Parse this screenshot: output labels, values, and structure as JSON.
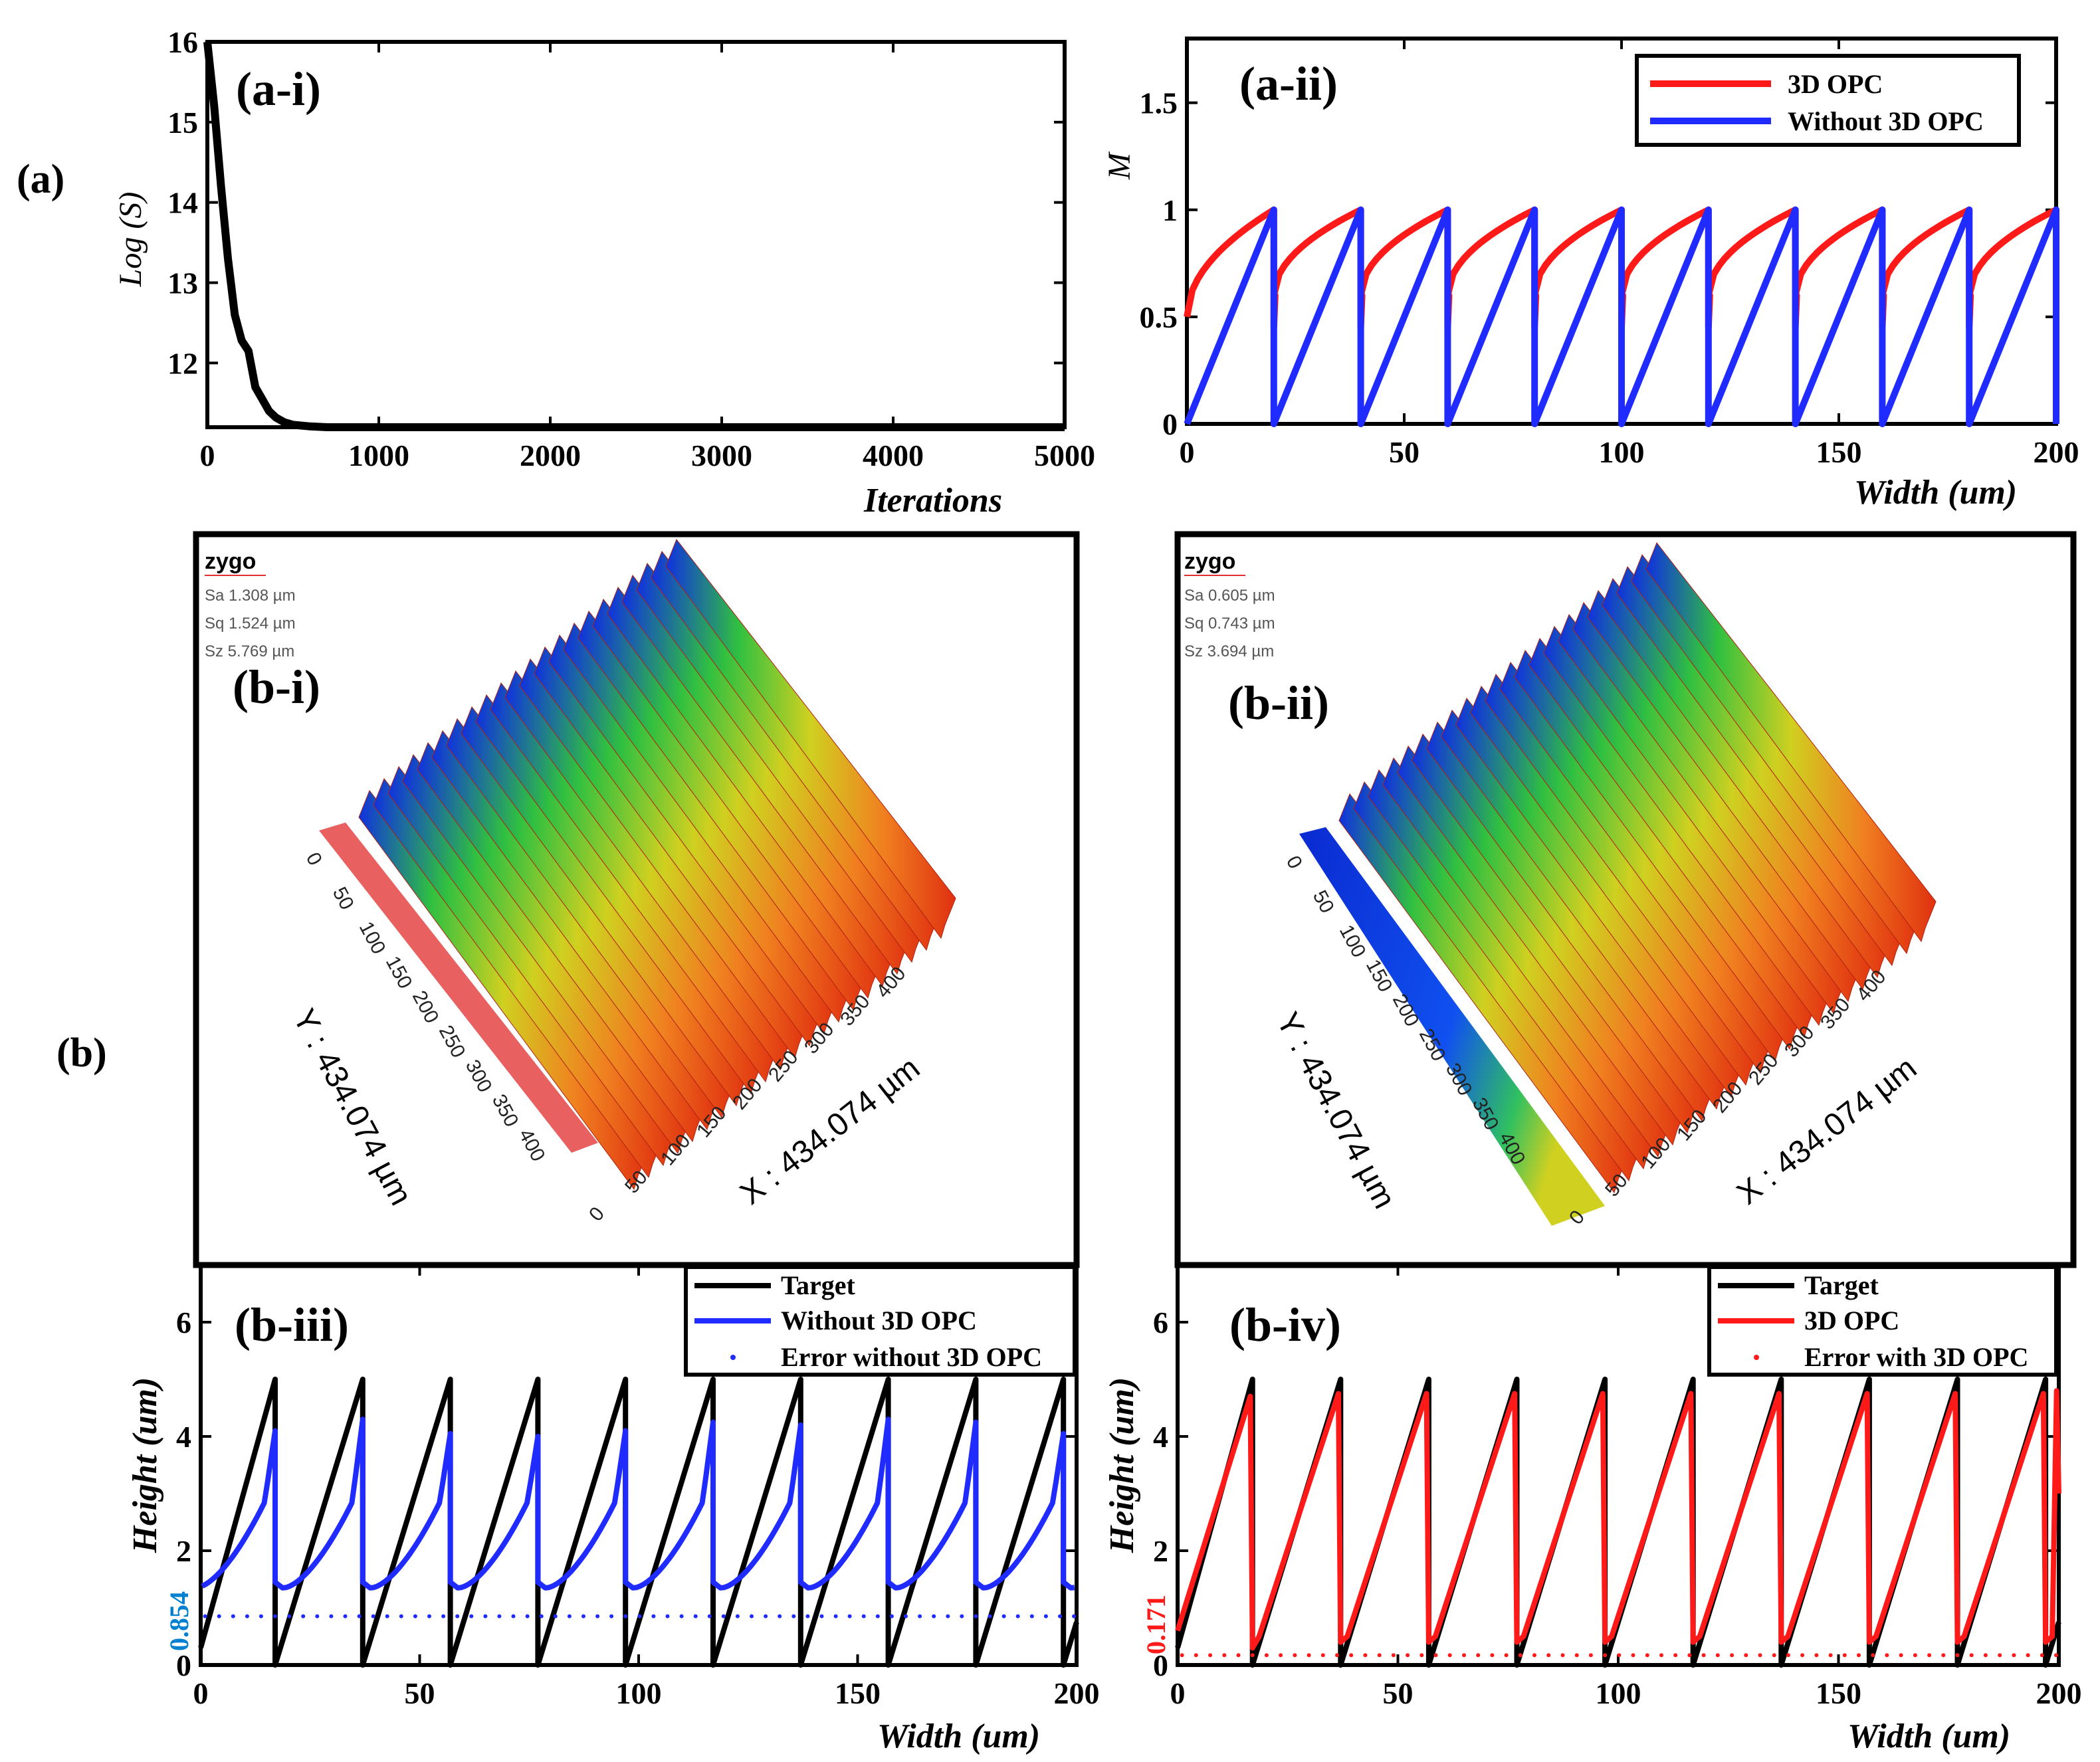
{
  "figure_labels": {
    "a": "(a)",
    "b": "(b)"
  },
  "colors": {
    "red": "#ff1a1a",
    "blue": "#1f2bff",
    "black": "#000000",
    "err_blue": "#0080d0",
    "err_red": "#ff1a1a"
  },
  "chart_data": [
    {
      "id": "a-i",
      "type": "line",
      "panel_label": "(a-i)",
      "xlabel": "Iterations",
      "ylabel": "Log (S)",
      "xlim": [
        0,
        5000
      ],
      "ylim": [
        11.2,
        16
      ],
      "xticks": [
        "0",
        "1000",
        "2000",
        "3000",
        "4000",
        "5000"
      ],
      "yticks": [
        "12",
        "13",
        "14",
        "15",
        "16"
      ],
      "series": [
        {
          "name": "Log(S)",
          "color": "#000000",
          "x": [
            0,
            40,
            80,
            120,
            160,
            200,
            240,
            280,
            320,
            360,
            400,
            450,
            500,
            600,
            700,
            1000,
            5000
          ],
          "y": [
            16,
            15.2,
            14.2,
            13.3,
            12.6,
            12.28,
            12.15,
            11.7,
            11.55,
            11.4,
            11.32,
            11.26,
            11.23,
            11.21,
            11.2,
            11.2,
            11.2
          ]
        }
      ]
    },
    {
      "id": "a-ii",
      "type": "line",
      "panel_label": "(a-ii)",
      "xlabel": "Width (um)",
      "ylabel": "M",
      "xlim": [
        0,
        200
      ],
      "ylim": [
        0,
        1.8
      ],
      "xticks": [
        "0",
        "50",
        "100",
        "150",
        "200"
      ],
      "yticks": [
        "0",
        "0.5",
        "1",
        "1.5"
      ],
      "period_um": 20,
      "legend": [
        "3D OPC",
        "Without 3D OPC"
      ],
      "series": [
        {
          "name": "3D OPC",
          "color": "#ff1a1a",
          "shape": "concave sawtooth",
          "min": 0.5,
          "max": 1.0
        },
        {
          "name": "Without 3D OPC",
          "color": "#1f2bff",
          "shape": "linear sawtooth",
          "min": 0,
          "max": 1.0
        }
      ]
    },
    {
      "id": "b-iii",
      "type": "line",
      "panel_label": "(b-iii)",
      "xlabel": "Width (um)",
      "ylabel": "Height (um)",
      "xlim": [
        0,
        200
      ],
      "ylim": [
        0,
        7
      ],
      "xticks": [
        "0",
        "50",
        "100",
        "150",
        "200"
      ],
      "yticks": [
        "0",
        "2",
        "4",
        "6"
      ],
      "error_value_label": "0.854",
      "error_value": 0.854,
      "period_um": 20,
      "first_drop_um": 17,
      "legend": [
        "Target",
        "Without 3D OPC",
        "Error without 3D OPC"
      ],
      "series": [
        {
          "name": "Target",
          "color": "#000000",
          "shape": "linear sawtooth",
          "min": 0,
          "max": 5
        },
        {
          "name": "Without 3D OPC",
          "color": "#1f2bff",
          "shape": "rising curve",
          "min": 1.3,
          "max": 4.1
        },
        {
          "name": "Error without 3D OPC",
          "color": "#1f2bff",
          "shape": "dotted constant",
          "value": 0.854
        }
      ]
    },
    {
      "id": "b-iv",
      "type": "line",
      "panel_label": "(b-iv)",
      "xlabel": "Width (um)",
      "ylabel": "Height (um)",
      "xlim": [
        0,
        200
      ],
      "ylim": [
        0,
        7
      ],
      "xticks": [
        "0",
        "50",
        "100",
        "150",
        "200"
      ],
      "yticks": [
        "0",
        "2",
        "4",
        "6"
      ],
      "error_value_label": "0.171",
      "error_value": 0.171,
      "period_um": 20,
      "first_drop_um": 17,
      "legend": [
        "Target",
        "3D OPC",
        "Error with 3D OPC"
      ],
      "series": [
        {
          "name": "Target",
          "color": "#000000",
          "shape": "linear sawtooth",
          "min": 0,
          "max": 5
        },
        {
          "name": "3D OPC",
          "color": "#ff1a1a",
          "shape": "linear sawtooth",
          "min": 0.5,
          "max": 4.8
        },
        {
          "name": "Error with 3D OPC",
          "color": "#ff1a1a",
          "shape": "dotted constant",
          "value": 0.171
        }
      ]
    }
  ],
  "profiles": [
    {
      "id": "b-i",
      "panel_label": "(b-i)",
      "brand": "zygo",
      "stats": [
        "Sa 1.308 µm",
        "Sq 1.524 µm",
        "Sz 5.769 µm"
      ],
      "y_axis": "Y : 434.074 µm",
      "x_axis": "X : 434.074 µm",
      "y_ticks": [
        "0",
        "50",
        "100",
        "150",
        "200",
        "250",
        "300",
        "350",
        "400"
      ],
      "x_ticks": [
        "0",
        "50",
        "100",
        "150",
        "200",
        "250",
        "300",
        "350",
        "400"
      ],
      "ridges": 22
    },
    {
      "id": "b-ii",
      "panel_label": "(b-ii)",
      "brand": "zygo",
      "stats": [
        "Sa 0.605 µm",
        "Sq 0.743 µm",
        "Sz 3.694 µm"
      ],
      "y_axis": "Y : 434.074 µm",
      "x_axis": "X : 434.074 µm",
      "y_ticks": [
        "0",
        "50",
        "100",
        "150",
        "200",
        "250",
        "300",
        "350",
        "400"
      ],
      "x_ticks": [
        "0",
        "50",
        "100",
        "150",
        "200",
        "250",
        "300",
        "350",
        "400"
      ],
      "ridges": 22
    }
  ]
}
